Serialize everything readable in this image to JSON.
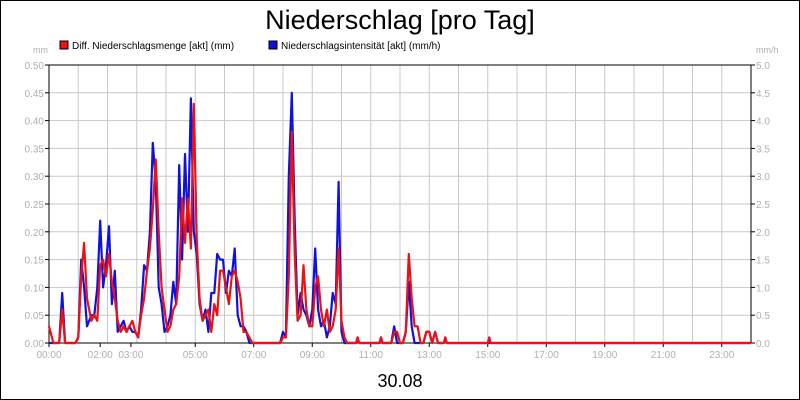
{
  "chart_data": {
    "type": "line",
    "title": "Niederschlag [pro Tag]",
    "xlabel": "30.08",
    "ylabel_left": "mm",
    "ylabel_right": "mm/h",
    "ylim_left": [
      0,
      0.5
    ],
    "ylim_right": [
      0,
      5
    ],
    "xlim": [
      0,
      24
    ],
    "grid": true,
    "legend_position": "top-left",
    "x_ticks": [
      {
        "label": "00:00",
        "value": 0
      },
      {
        "label": "02:00",
        "value": 1.75
      },
      {
        "label": "03:00",
        "value": 2.8
      },
      {
        "label": "05:00",
        "value": 5
      },
      {
        "label": "07:00",
        "value": 7
      },
      {
        "label": "09:00",
        "value": 9
      },
      {
        "label": "11:00",
        "value": 11
      },
      {
        "label": "13:00",
        "value": 13
      },
      {
        "label": "15:00",
        "value": 15
      },
      {
        "label": "17:00",
        "value": 17
      },
      {
        "label": "19:00",
        "value": 19
      },
      {
        "label": "21:00",
        "value": 21
      },
      {
        "label": "23:00",
        "value": 23
      }
    ],
    "y_ticks_left": [
      "0.00",
      "0.05",
      "0.10",
      "0.15",
      "0.20",
      "0.25",
      "0.30",
      "0.35",
      "0.40",
      "0.45",
      "0.50"
    ],
    "y_ticks_right": [
      "0.0",
      "0.5",
      "1.0",
      "1.5",
      "2.0",
      "2.5",
      "3.0",
      "3.5",
      "4.0",
      "4.5",
      "5.0"
    ],
    "series": [
      {
        "name": "Diff. Niederschlagsmenge [akt] (mm)",
        "color": "#ee1111",
        "axis": "left",
        "points": [
          [
            0.0,
            0.03
          ],
          [
            0.15,
            0.0
          ],
          [
            0.35,
            0.0
          ],
          [
            0.45,
            0.06
          ],
          [
            0.55,
            0.0
          ],
          [
            0.9,
            0.0
          ],
          [
            1.0,
            0.01
          ],
          [
            1.1,
            0.12
          ],
          [
            1.2,
            0.18
          ],
          [
            1.3,
            0.08
          ],
          [
            1.45,
            0.04
          ],
          [
            1.55,
            0.05
          ],
          [
            1.65,
            0.04
          ],
          [
            1.75,
            0.14
          ],
          [
            1.85,
            0.15
          ],
          [
            1.95,
            0.12
          ],
          [
            2.05,
            0.16
          ],
          [
            2.15,
            0.11
          ],
          [
            2.25,
            0.08
          ],
          [
            2.35,
            0.04
          ],
          [
            2.45,
            0.02
          ],
          [
            2.55,
            0.03
          ],
          [
            2.65,
            0.02
          ],
          [
            2.75,
            0.03
          ],
          [
            2.85,
            0.04
          ],
          [
            2.95,
            0.02
          ],
          [
            3.05,
            0.01
          ],
          [
            3.15,
            0.05
          ],
          [
            3.25,
            0.08
          ],
          [
            3.35,
            0.13
          ],
          [
            3.45,
            0.17
          ],
          [
            3.55,
            0.24
          ],
          [
            3.65,
            0.33
          ],
          [
            3.75,
            0.2
          ],
          [
            3.85,
            0.1
          ],
          [
            3.95,
            0.06
          ],
          [
            4.05,
            0.02
          ],
          [
            4.15,
            0.03
          ],
          [
            4.25,
            0.06
          ],
          [
            4.35,
            0.07
          ],
          [
            4.45,
            0.12
          ],
          [
            4.55,
            0.26
          ],
          [
            4.65,
            0.18
          ],
          [
            4.75,
            0.26
          ],
          [
            4.85,
            0.17
          ],
          [
            4.95,
            0.43
          ],
          [
            5.05,
            0.19
          ],
          [
            5.15,
            0.08
          ],
          [
            5.25,
            0.04
          ],
          [
            5.35,
            0.05
          ],
          [
            5.45,
            0.06
          ],
          [
            5.55,
            0.02
          ],
          [
            5.65,
            0.07
          ],
          [
            5.75,
            0.05
          ],
          [
            5.85,
            0.13
          ],
          [
            5.95,
            0.13
          ],
          [
            6.05,
            0.1
          ],
          [
            6.15,
            0.07
          ],
          [
            6.25,
            0.12
          ],
          [
            6.35,
            0.13
          ],
          [
            6.45,
            0.11
          ],
          [
            6.55,
            0.08
          ],
          [
            6.65,
            0.02
          ],
          [
            6.75,
            0.02
          ],
          [
            6.85,
            0.01
          ],
          [
            6.95,
            0.0
          ],
          [
            7.5,
            0.0
          ],
          [
            7.9,
            0.0
          ],
          [
            8.0,
            0.01
          ],
          [
            8.1,
            0.01
          ],
          [
            8.2,
            0.12
          ],
          [
            8.3,
            0.38
          ],
          [
            8.4,
            0.16
          ],
          [
            8.5,
            0.04
          ],
          [
            8.6,
            0.05
          ],
          [
            8.7,
            0.14
          ],
          [
            8.8,
            0.06
          ],
          [
            8.9,
            0.03
          ],
          [
            9.0,
            0.03
          ],
          [
            9.1,
            0.1
          ],
          [
            9.2,
            0.12
          ],
          [
            9.3,
            0.06
          ],
          [
            9.4,
            0.03
          ],
          [
            9.5,
            0.06
          ],
          [
            9.6,
            0.02
          ],
          [
            9.7,
            0.03
          ],
          [
            9.8,
            0.06
          ],
          [
            9.9,
            0.17
          ],
          [
            10.0,
            0.04
          ],
          [
            10.1,
            0.01
          ],
          [
            10.2,
            0.0
          ],
          [
            10.5,
            0.0
          ],
          [
            10.55,
            0.01
          ],
          [
            10.6,
            0.0
          ],
          [
            11.3,
            0.0
          ],
          [
            11.35,
            0.01
          ],
          [
            11.4,
            0.0
          ],
          [
            11.7,
            0.0
          ],
          [
            11.8,
            0.02
          ],
          [
            11.9,
            0.02
          ],
          [
            12.0,
            0.0
          ],
          [
            12.1,
            0.0
          ],
          [
            12.2,
            0.02
          ],
          [
            12.3,
            0.16
          ],
          [
            12.4,
            0.08
          ],
          [
            12.5,
            0.03
          ],
          [
            12.6,
            0.03
          ],
          [
            12.7,
            0.0
          ],
          [
            12.8,
            0.0
          ],
          [
            12.9,
            0.02
          ],
          [
            13.0,
            0.02
          ],
          [
            13.1,
            0.0
          ],
          [
            13.2,
            0.02
          ],
          [
            13.3,
            0.0
          ],
          [
            13.5,
            0.0
          ],
          [
            13.55,
            0.01
          ],
          [
            13.6,
            0.0
          ],
          [
            15.0,
            0.0
          ],
          [
            15.05,
            0.01
          ],
          [
            15.1,
            0.0
          ],
          [
            24.0,
            0.0
          ]
        ]
      },
      {
        "name": "Niederschlagsintensität [akt] (mm/h)",
        "color": "#1111dd",
        "axis": "right",
        "points": [
          [
            0.0,
            0.0
          ],
          [
            0.35,
            0.0
          ],
          [
            0.45,
            0.9
          ],
          [
            0.55,
            0.0
          ],
          [
            0.9,
            0.0
          ],
          [
            1.0,
            0.1
          ],
          [
            1.1,
            1.5
          ],
          [
            1.2,
            1.0
          ],
          [
            1.3,
            0.3
          ],
          [
            1.45,
            0.5
          ],
          [
            1.55,
            0.5
          ],
          [
            1.65,
            1.0
          ],
          [
            1.75,
            2.2
          ],
          [
            1.85,
            1.0
          ],
          [
            1.95,
            1.4
          ],
          [
            2.05,
            2.1
          ],
          [
            2.15,
            0.7
          ],
          [
            2.25,
            1.3
          ],
          [
            2.35,
            0.2
          ],
          [
            2.45,
            0.3
          ],
          [
            2.55,
            0.4
          ],
          [
            2.65,
            0.2
          ],
          [
            2.75,
            0.3
          ],
          [
            2.85,
            0.2
          ],
          [
            2.95,
            0.2
          ],
          [
            3.05,
            0.1
          ],
          [
            3.15,
            0.6
          ],
          [
            3.25,
            1.4
          ],
          [
            3.35,
            1.3
          ],
          [
            3.45,
            2.0
          ],
          [
            3.55,
            3.6
          ],
          [
            3.65,
            2.9
          ],
          [
            3.75,
            1.0
          ],
          [
            3.85,
            0.7
          ],
          [
            3.95,
            0.2
          ],
          [
            4.05,
            0.3
          ],
          [
            4.15,
            0.5
          ],
          [
            4.25,
            1.1
          ],
          [
            4.35,
            0.7
          ],
          [
            4.45,
            3.2
          ],
          [
            4.55,
            1.5
          ],
          [
            4.65,
            3.4
          ],
          [
            4.75,
            2.0
          ],
          [
            4.85,
            4.4
          ],
          [
            4.95,
            2.0
          ],
          [
            5.05,
            1.6
          ],
          [
            5.15,
            0.7
          ],
          [
            5.25,
            0.4
          ],
          [
            5.35,
            0.6
          ],
          [
            5.45,
            0.2
          ],
          [
            5.55,
            0.9
          ],
          [
            5.65,
            0.9
          ],
          [
            5.75,
            1.6
          ],
          [
            5.85,
            1.5
          ],
          [
            5.95,
            1.5
          ],
          [
            6.05,
            0.9
          ],
          [
            6.15,
            1.3
          ],
          [
            6.25,
            1.2
          ],
          [
            6.35,
            1.7
          ],
          [
            6.45,
            0.5
          ],
          [
            6.55,
            0.3
          ],
          [
            6.65,
            0.3
          ],
          [
            6.75,
            0.2
          ],
          [
            6.85,
            0.0
          ],
          [
            7.5,
            0.0
          ],
          [
            7.9,
            0.0
          ],
          [
            8.0,
            0.2
          ],
          [
            8.1,
            0.1
          ],
          [
            8.2,
            3.0
          ],
          [
            8.3,
            4.5
          ],
          [
            8.4,
            2.2
          ],
          [
            8.5,
            0.5
          ],
          [
            8.6,
            0.9
          ],
          [
            8.7,
            0.6
          ],
          [
            8.8,
            0.5
          ],
          [
            8.9,
            0.3
          ],
          [
            9.0,
            0.6
          ],
          [
            9.1,
            1.7
          ],
          [
            9.2,
            0.6
          ],
          [
            9.3,
            0.3
          ],
          [
            9.4,
            0.4
          ],
          [
            9.5,
            0.1
          ],
          [
            9.6,
            0.3
          ],
          [
            9.7,
            0.9
          ],
          [
            9.8,
            0.7
          ],
          [
            9.9,
            2.9
          ],
          [
            10.0,
            0.2
          ],
          [
            10.1,
            0.0
          ],
          [
            10.5,
            0.0
          ],
          [
            10.55,
            0.1
          ],
          [
            10.6,
            0.0
          ],
          [
            11.3,
            0.0
          ],
          [
            11.35,
            0.1
          ],
          [
            11.4,
            0.0
          ],
          [
            11.7,
            0.0
          ],
          [
            11.8,
            0.3
          ],
          [
            11.9,
            0.0
          ],
          [
            12.1,
            0.0
          ],
          [
            12.2,
            0.2
          ],
          [
            12.3,
            1.1
          ],
          [
            12.4,
            0.3
          ],
          [
            12.5,
            0.0
          ],
          [
            12.8,
            0.0
          ],
          [
            12.9,
            0.2
          ],
          [
            13.0,
            0.2
          ],
          [
            13.1,
            0.0
          ],
          [
            13.2,
            0.2
          ],
          [
            13.3,
            0.0
          ],
          [
            13.5,
            0.0
          ],
          [
            13.55,
            0.1
          ],
          [
            13.6,
            0.0
          ],
          [
            24.0,
            0.0
          ]
        ]
      }
    ]
  }
}
